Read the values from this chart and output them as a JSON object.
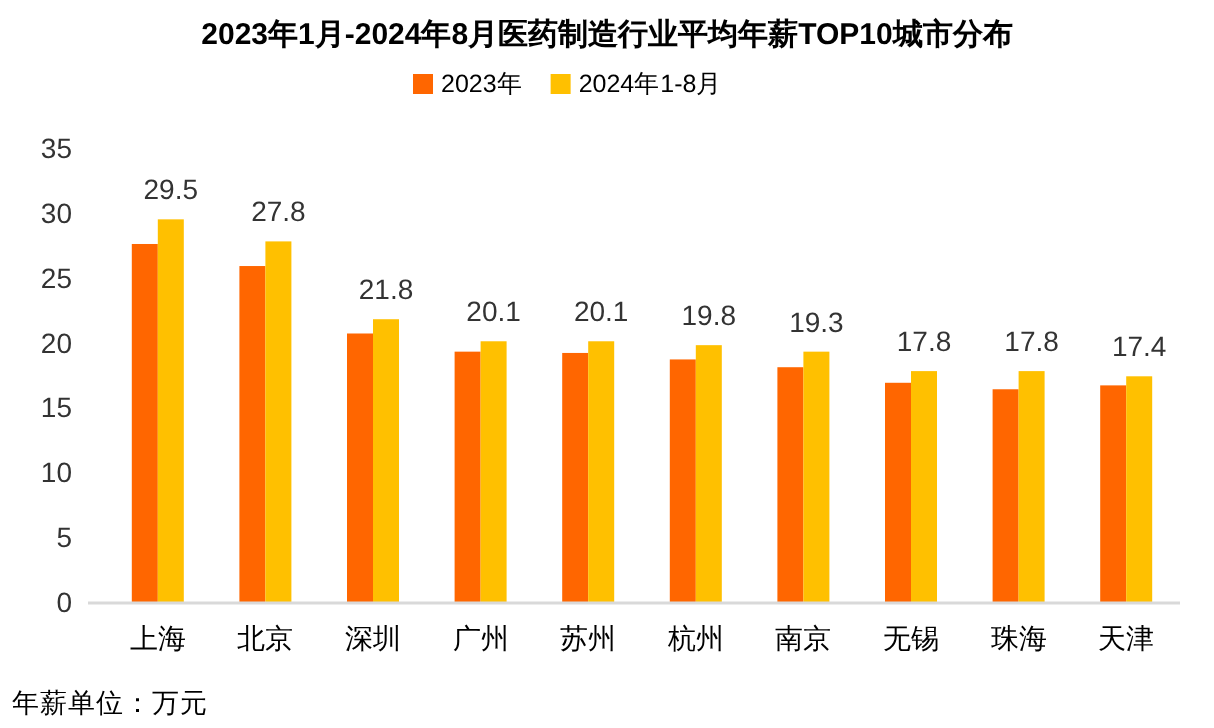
{
  "chart_data": {
    "type": "bar",
    "title": "2023年1月-2024年8月医药制造行业平均年薪TOP10城市分布",
    "categories": [
      "上海",
      "北京",
      "深圳",
      "广州",
      "苏州",
      "杭州",
      "南京",
      "无锡",
      "珠海",
      "天津"
    ],
    "series": [
      {
        "name": "2023年",
        "color": "#ff6600",
        "values": [
          27.6,
          25.9,
          20.7,
          19.3,
          19.2,
          18.7,
          18.1,
          16.9,
          16.4,
          16.7
        ]
      },
      {
        "name": "2024年1-8月",
        "color": "#ffc000",
        "values": [
          29.5,
          27.8,
          21.8,
          20.1,
          20.1,
          19.8,
          19.3,
          17.8,
          17.8,
          17.4
        ],
        "value_labels": [
          "29.5",
          "27.8",
          "21.8",
          "20.1",
          "20.1",
          "19.8",
          "19.3",
          "17.8",
          "17.8",
          "17.4"
        ]
      }
    ],
    "ylim": [
      0,
      35
    ],
    "yticks": [
      0,
      5,
      10,
      15,
      20,
      25,
      30,
      35
    ],
    "grid": false,
    "legend": "top",
    "annotations": [
      "年薪单位：万元"
    ]
  }
}
